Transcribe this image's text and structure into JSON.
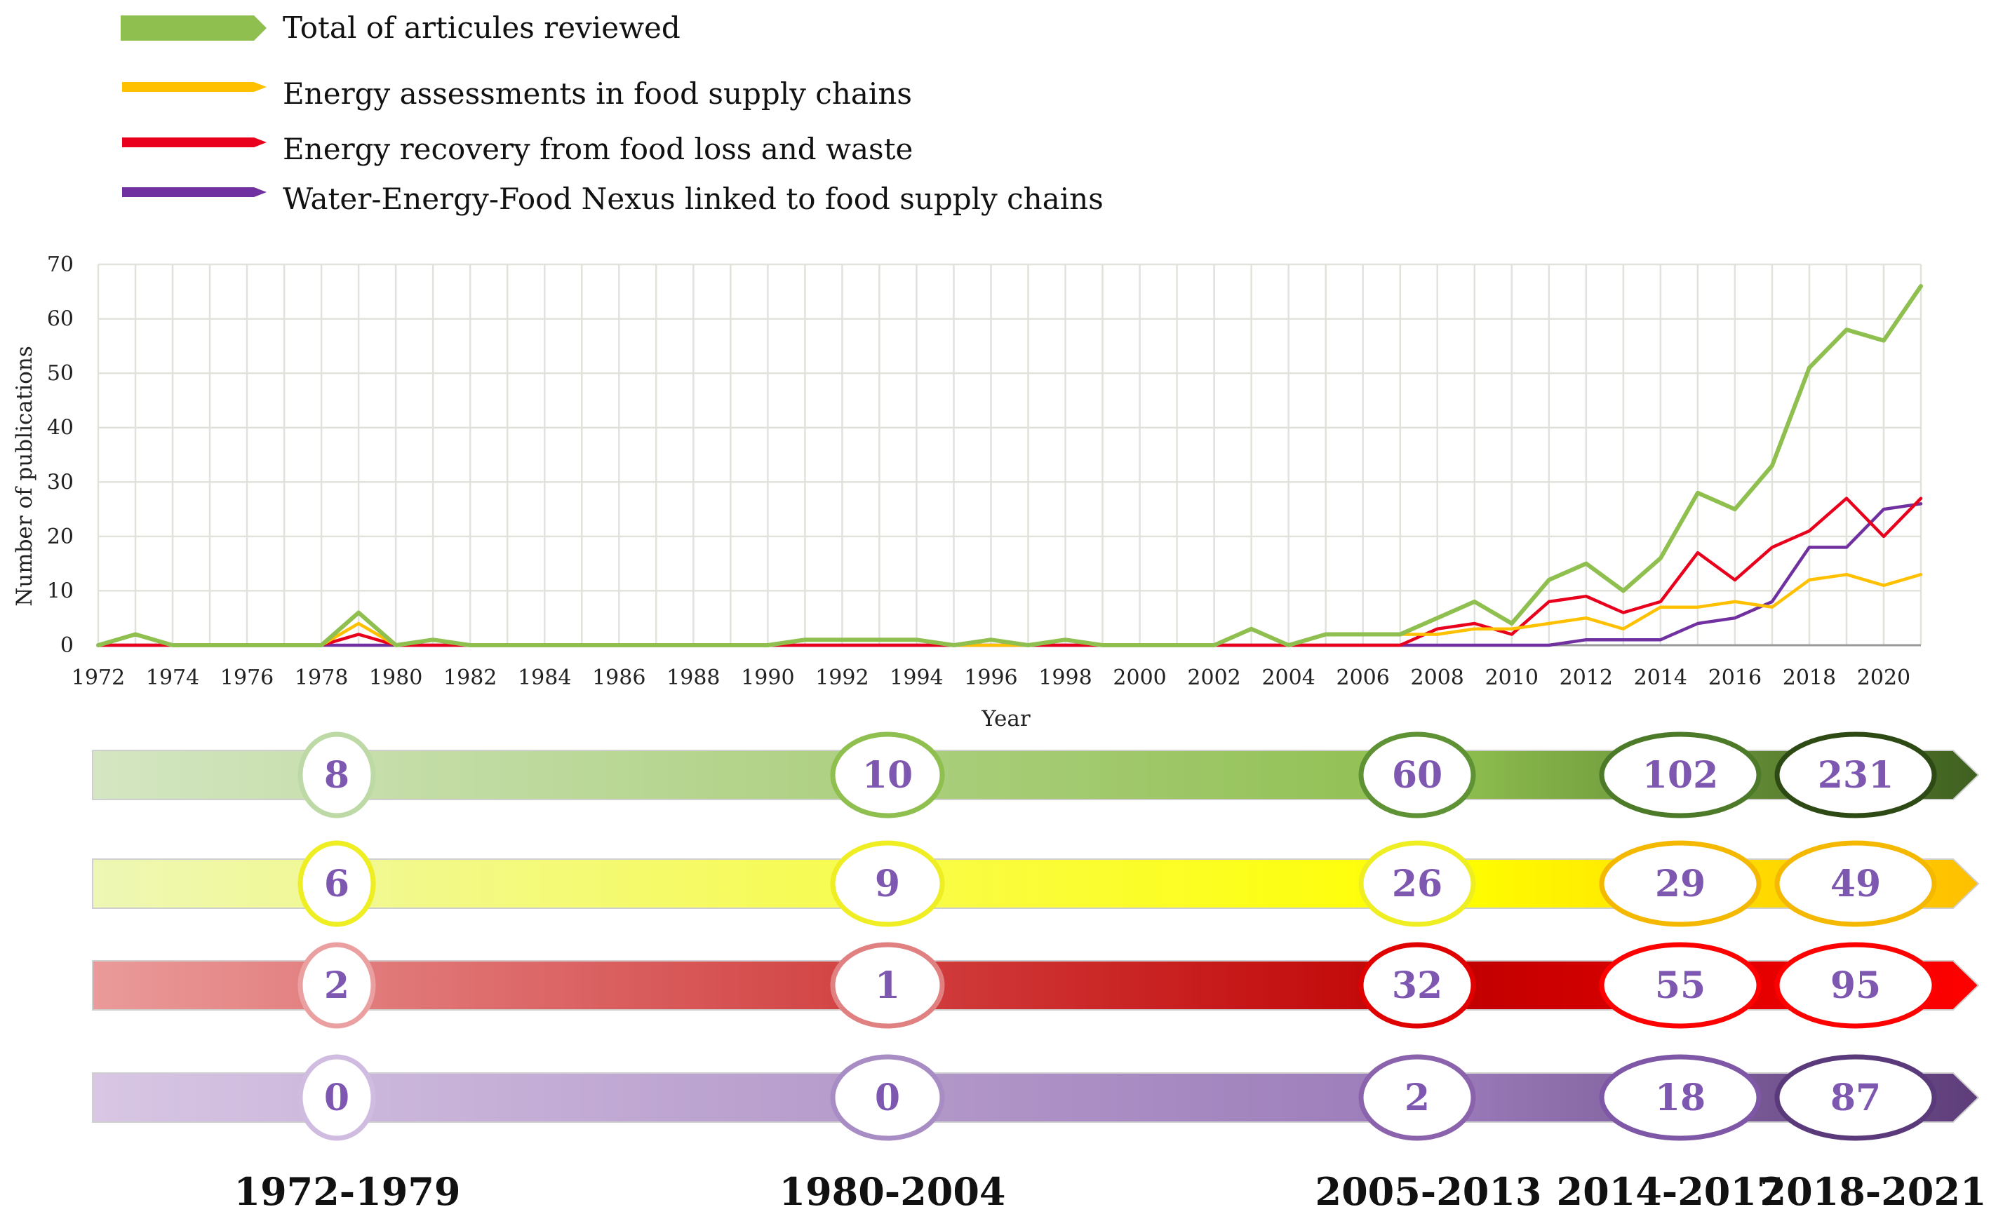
{
  "legend": [
    {
      "label": "Total of articules reviewed",
      "color": "#8fbf4f",
      "shape": "arrow"
    },
    {
      "label": "Energy assessments in food supply chains",
      "color": "#ffc000"
    },
    {
      "label": "Energy recovery from food loss and waste",
      "color": "#e8001c"
    },
    {
      "label": "Water-Energy-Food Nexus linked to food supply chains",
      "color": "#7030a0"
    }
  ],
  "chart_data": [
    {
      "type": "line",
      "xlabel": "Year",
      "ylabel": "Number of publications",
      "ylim": [
        0,
        70
      ],
      "yticks": [
        0,
        10,
        20,
        30,
        40,
        50,
        60,
        70
      ],
      "xlim": [
        1972,
        2021
      ],
      "xticks": [
        1972,
        1974,
        1976,
        1978,
        1980,
        1982,
        1984,
        1986,
        1988,
        1990,
        1992,
        1994,
        1996,
        1998,
        2000,
        2002,
        2004,
        2006,
        2008,
        2010,
        2012,
        2014,
        2016,
        2018,
        2020
      ],
      "grid": true,
      "x": [
        1972,
        1973,
        1974,
        1975,
        1976,
        1977,
        1978,
        1979,
        1980,
        1981,
        1982,
        1983,
        1984,
        1985,
        1986,
        1987,
        1988,
        1989,
        1990,
        1991,
        1992,
        1993,
        1994,
        1995,
        1996,
        1997,
        1998,
        1999,
        2000,
        2001,
        2002,
        2003,
        2004,
        2005,
        2006,
        2007,
        2008,
        2009,
        2010,
        2011,
        2012,
        2013,
        2014,
        2015,
        2016,
        2017,
        2018,
        2019,
        2020,
        2021
      ],
      "series": [
        {
          "name": "Total of articules reviewed",
          "color": "#8fbf4f",
          "values": [
            0,
            2,
            0,
            0,
            0,
            0,
            0,
            6,
            0,
            1,
            0,
            0,
            0,
            0,
            0,
            0,
            0,
            0,
            0,
            1,
            1,
            1,
            1,
            0,
            1,
            0,
            1,
            0,
            0,
            0,
            0,
            3,
            0,
            2,
            2,
            2,
            5,
            8,
            4,
            12,
            15,
            10,
            16,
            28,
            25,
            33,
            51,
            58,
            56,
            66
          ]
        },
        {
          "name": "Energy assessments in food supply chains",
          "color": "#ffc000",
          "values": [
            0,
            2,
            0,
            0,
            0,
            0,
            0,
            4,
            0,
            1,
            0,
            0,
            0,
            0,
            0,
            0,
            0,
            0,
            0,
            1,
            1,
            1,
            1,
            0,
            0,
            0,
            1,
            0,
            0,
            0,
            0,
            3,
            0,
            2,
            2,
            2,
            2,
            3,
            3,
            4,
            5,
            3,
            7,
            7,
            8,
            7,
            12,
            13,
            11,
            13
          ]
        },
        {
          "name": "Energy recovery from food loss and waste",
          "color": "#e8001c",
          "values": [
            0,
            0,
            0,
            0,
            0,
            0,
            0,
            2,
            0,
            0,
            0,
            0,
            0,
            0,
            0,
            0,
            0,
            0,
            0,
            0,
            0,
            0,
            0,
            0,
            1,
            0,
            0,
            0,
            0,
            0,
            0,
            0,
            0,
            0,
            0,
            0,
            3,
            4,
            2,
            8,
            9,
            6,
            8,
            17,
            12,
            18,
            21,
            27,
            20,
            27
          ]
        },
        {
          "name": "Water-Energy-Food Nexus linked to food supply chains",
          "color": "#7030a0",
          "values": [
            0,
            0,
            0,
            0,
            0,
            0,
            0,
            0,
            0,
            0,
            0,
            0,
            0,
            0,
            0,
            0,
            0,
            0,
            0,
            0,
            0,
            0,
            0,
            0,
            0,
            0,
            0,
            0,
            0,
            0,
            0,
            0,
            0,
            0,
            0,
            0,
            0,
            0,
            0,
            0,
            1,
            1,
            1,
            4,
            5,
            8,
            18,
            18,
            25,
            26
          ]
        }
      ]
    },
    {
      "type": "table",
      "periods": [
        "1972-1979",
        "1980-2004",
        "2005-2013",
        "2014-2017",
        "2018-2021"
      ],
      "rows": [
        {
          "name": "Total of articules reviewed",
          "values": [
            "8",
            "10",
            "60",
            "102",
            "231"
          ]
        },
        {
          "name": "Energy assessments in food supply chains",
          "values": [
            "6",
            "9",
            "26",
            "29",
            "49"
          ]
        },
        {
          "name": "Energy recovery from food loss and waste",
          "values": [
            "2",
            "1",
            "32",
            "55",
            "95"
          ]
        },
        {
          "name": "Water-Energy-Food Nexus linked to food supply chains",
          "values": [
            "0",
            "0",
            "2",
            "18",
            "87"
          ]
        }
      ]
    }
  ],
  "colors": {
    "grid": "#e2e2dc",
    "axis": "#999999",
    "number_text": "#7e57b0",
    "period_text": "#111111",
    "bands": [
      {
        "from": "#d4e6c2",
        "mid": "#8fbf4f",
        "to": "#3f6020",
        "ring": [
          "#bcd9a6",
          "#8fbf4f",
          "#5e9234",
          "#4d7a28",
          "#2e4a14"
        ]
      },
      {
        "from": "#eef7b4",
        "mid": "#ffff00",
        "to": "#ffbf00",
        "ring": [
          "#eeee22",
          "#eeee22",
          "#eeee22",
          "#f5b800",
          "#f5b800"
        ]
      },
      {
        "from": "#ea9a9a",
        "mid": "#c00000",
        "to": "#ff0000",
        "ring": [
          "#eaa0a0",
          "#e08080",
          "#e00000",
          "#ff0000",
          "#ff0000"
        ]
      },
      {
        "from": "#d8c6e4",
        "mid": "#9a7ab8",
        "to": "#5e3d7a",
        "ring": [
          "#d0bce0",
          "#a88cc4",
          "#8a63ac",
          "#7e57a6",
          "#5a3a7a"
        ]
      }
    ]
  }
}
